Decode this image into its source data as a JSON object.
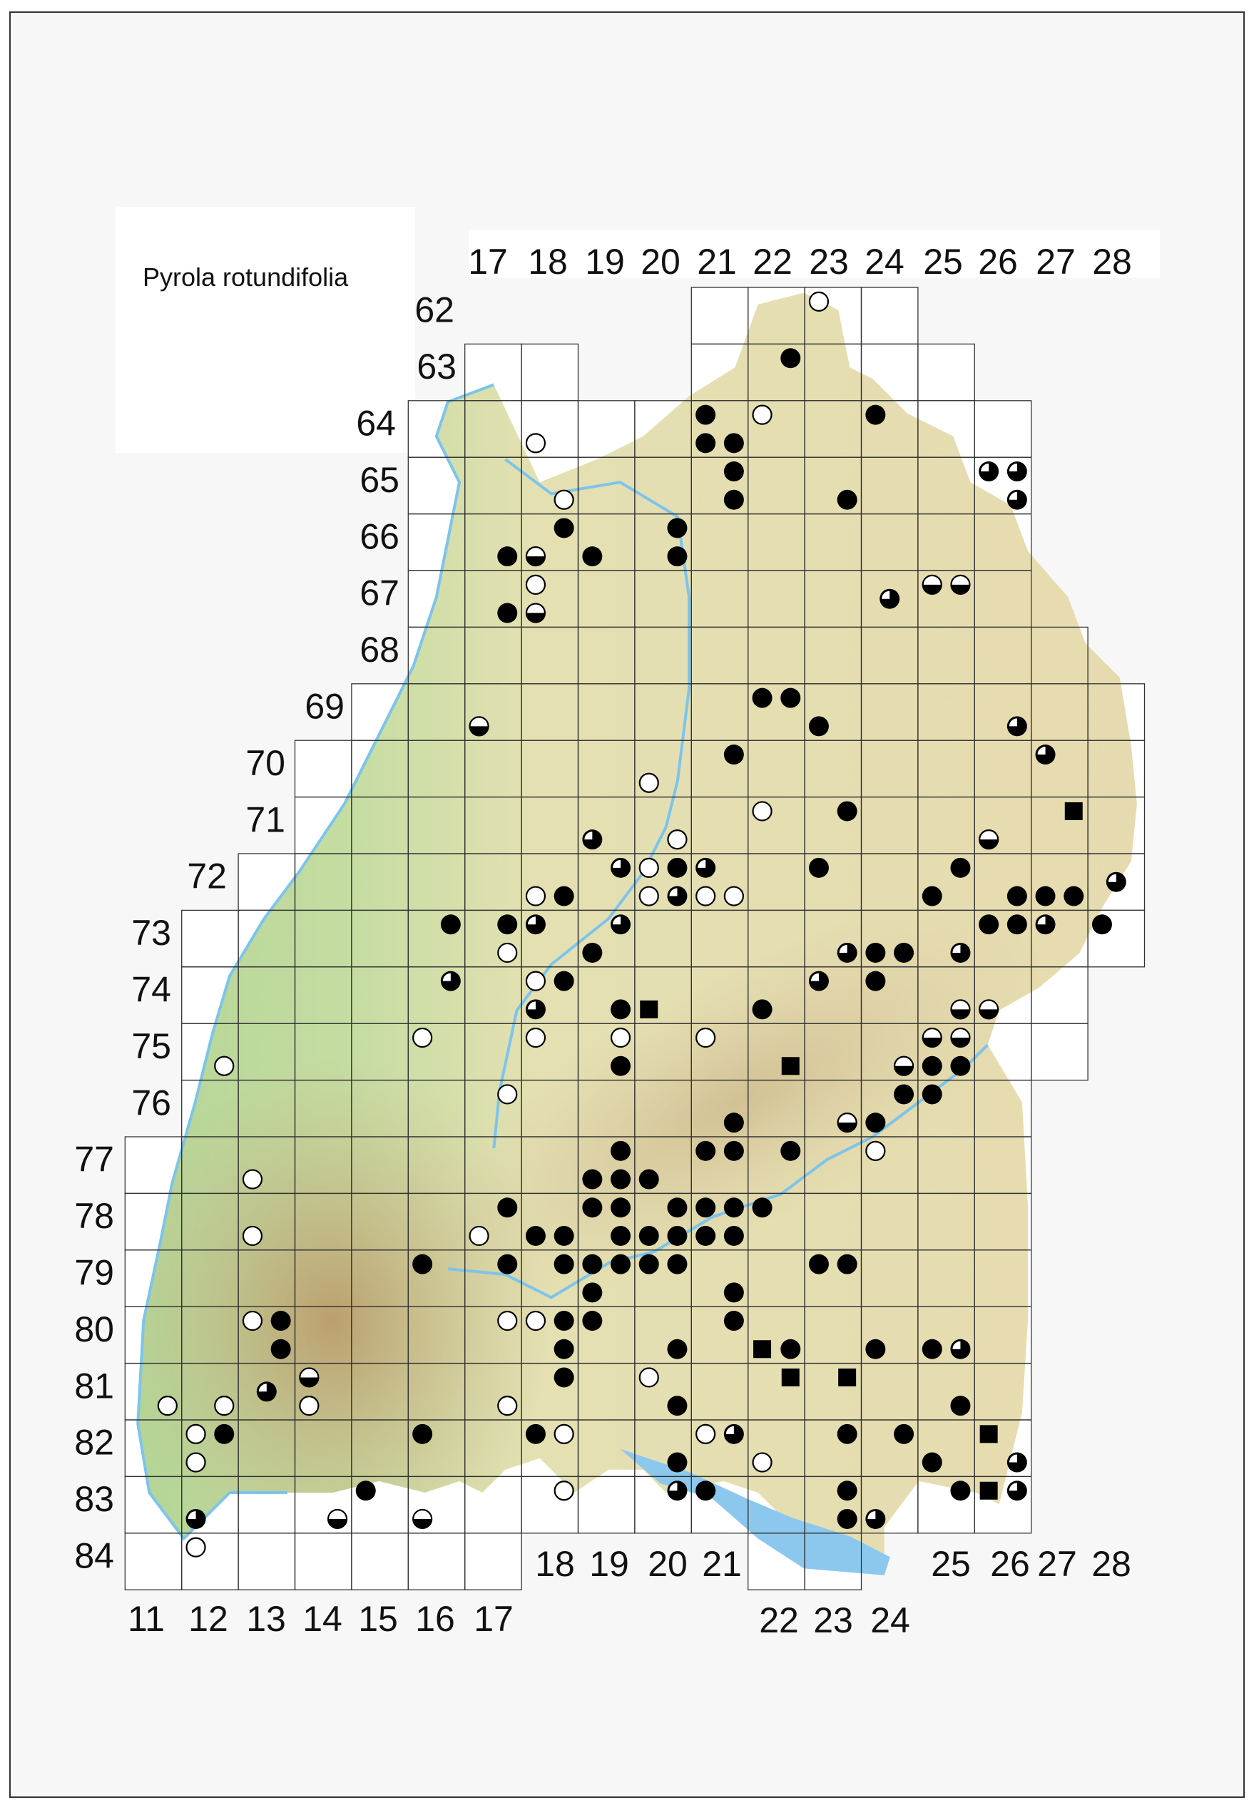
{
  "title": "Pyrola rotundifolia",
  "top_column_labels": [
    "17",
    "18",
    "19",
    "20",
    "21",
    "22",
    "23",
    "24",
    "25",
    "26",
    "27",
    "28"
  ],
  "row_labels": [
    "62",
    "63",
    "64",
    "65",
    "66",
    "67",
    "68",
    "69",
    "70",
    "71",
    "72",
    "73",
    "74",
    "75",
    "76",
    "77",
    "78",
    "79",
    "80",
    "81",
    "82",
    "83",
    "84"
  ],
  "bottom_column_labels": [
    "11",
    "12",
    "13",
    "14",
    "15",
    "16",
    "17",
    "18",
    "19",
    "20",
    "21",
    "22",
    "23",
    "24",
    "25",
    "26",
    "27",
    "28"
  ],
  "symbol_colors": {
    "fill": "#000000",
    "empty": "#ffffff",
    "lake": "#8cc8ee",
    "river": "#7cc4ec"
  },
  "records": {
    "filled": [
      "6322/2",
      "6421/1",
      "6421/3",
      "6421/4",
      "6424/1",
      "6521/2",
      "6521/4",
      "6523/4",
      "6618/2",
      "6617/4",
      "6619/3",
      "6620/2",
      "6620/4",
      "6717/4",
      "6922/1",
      "6922/2",
      "6923/3",
      "7021/2",
      "7123/2",
      "7220/2",
      "7218/4",
      "7223/1",
      "7225/2",
      "7225/3",
      "7226/4",
      "7227/3",
      "7227/4",
      "7316/2",
      "7317/2",
      "7319/3",
      "7326/1",
      "7326/2",
      "7328/1",
      "7324/3",
      "7324/4",
      "7418/2",
      "7419/4",
      "7422/3",
      "7424/1",
      "7519/4",
      "7525/3",
      "7525/4",
      "7621/4",
      "7624/2",
      "7625/1",
      "7624/3",
      "7719/2",
      "7721/1",
      "7721/2",
      "7722/2",
      "7719/3",
      "7719/4",
      "7720/3",
      "7817/2",
      "7819/1",
      "7819/2",
      "7820/2",
      "7821/1",
      "7821/2",
      "7822/1",
      "7818/3",
      "7818/4",
      "7819/4",
      "7820/3",
      "7820/4",
      "7821/3",
      "7821/4",
      "7916/1",
      "7917/2",
      "7918/2",
      "7919/1",
      "7919/2",
      "7920/1",
      "7920/2",
      "7919/3",
      "7921/4",
      "7923/1",
      "7923/2",
      "8013/2",
      "8013/4",
      "8018/2",
      "8019/1",
      "8021/2",
      "8018/4",
      "8020/4",
      "8022/4",
      "8024/3",
      "8025/3",
      "8118/2",
      "8120/4",
      "8125/4",
      "8212/2",
      "8216/1",
      "8218/1",
      "8220/4",
      "8223/2",
      "8224/2",
      "8225/3",
      "8315/1",
      "8321/1",
      "8323/2",
      "8325/2",
      "8323/4"
    ],
    "open": [
      "6223/1",
      "6422/1",
      "6418/3",
      "6518/4",
      "6718/1",
      "7020/3",
      "7122/1",
      "7120/4",
      "7220/1",
      "7218/3",
      "7220/3",
      "7221/3",
      "7221/4",
      "7317/4",
      "7418/1",
      "7518/1",
      "7519/2",
      "7521/1",
      "7516/1",
      "7512/4",
      "7617/2",
      "7724/1",
      "7713/3",
      "7813/3",
      "7817/3",
      "8013/1",
      "8017/2",
      "8018/1",
      "8120/1",
      "8111/4",
      "8112/4",
      "8114/3",
      "8117/4",
      "8212/1",
      "8212/3",
      "8218/2",
      "8221/1",
      "8222/3",
      "8318/2",
      "8412/1"
    ],
    "half": [
      "6618/3",
      "6718/3",
      "6725/1",
      "6725/2",
      "6917/3",
      "7126/3",
      "7425/4",
      "7426/3",
      "7525/1",
      "7525/2",
      "7524/4",
      "7623/4",
      "8114/1",
      "8314/4",
      "8316/3"
    ],
    "three_quarter": [
      "6526/1",
      "6526/2",
      "6526/4",
      "6724",
      "6926/4",
      "7027/1",
      "7119/3",
      "7219/2",
      "7221/1",
      "7220/4",
      "7228",
      "7318/1",
      "7319/2",
      "7327/1",
      "7323/4",
      "7325/4",
      "7416/2",
      "7418/3",
      "7423/1",
      "8025/4",
      "8113",
      "8221/2",
      "8226/4",
      "8312/3",
      "8320/2",
      "8324/3",
      "8326/2"
    ],
    "square": [
      "7127/2",
      "7420/3",
      "7522/4",
      "8022/3",
      "8122/2",
      "8123/2",
      "8226/1",
      "8326/1"
    ]
  }
}
